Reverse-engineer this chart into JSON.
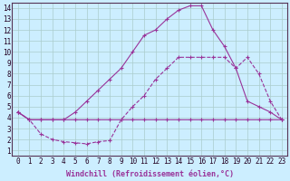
{
  "xlabel": "Windchill (Refroidissement éolien,°C)",
  "bg_color": "#cceeff",
  "grid_color": "#aacccc",
  "line_color": "#993399",
  "marker": "+",
  "xlim": [
    -0.5,
    23.5
  ],
  "ylim": [
    0.5,
    14.5
  ],
  "xticks": [
    0,
    1,
    2,
    3,
    4,
    5,
    6,
    7,
    8,
    9,
    10,
    11,
    12,
    13,
    14,
    15,
    16,
    17,
    18,
    19,
    20,
    21,
    22,
    23
  ],
  "yticks": [
    1,
    2,
    3,
    4,
    5,
    6,
    7,
    8,
    9,
    10,
    11,
    12,
    13,
    14
  ],
  "line1_x": [
    0,
    1,
    2,
    3,
    4,
    5,
    6,
    7,
    8,
    9,
    10,
    11,
    12,
    13,
    14,
    15,
    16,
    17,
    18,
    19,
    20,
    21,
    22,
    23
  ],
  "line1_y": [
    4.5,
    3.8,
    3.8,
    3.8,
    3.8,
    3.8,
    3.8,
    3.8,
    3.8,
    3.8,
    3.8,
    3.8,
    3.8,
    3.8,
    3.8,
    3.8,
    3.8,
    3.8,
    3.8,
    3.8,
    3.8,
    3.8,
    3.8,
    3.8
  ],
  "line2_x": [
    0,
    1,
    2,
    3,
    4,
    5,
    6,
    7,
    8,
    9,
    10,
    11,
    12,
    13,
    14,
    15,
    16,
    17,
    18,
    19,
    20,
    21,
    22,
    23
  ],
  "line2_y": [
    4.5,
    3.8,
    2.5,
    2.0,
    1.8,
    1.7,
    1.6,
    1.8,
    1.9,
    3.8,
    5.0,
    6.0,
    7.5,
    8.5,
    9.5,
    9.5,
    9.5,
    9.5,
    9.5,
    8.5,
    9.5,
    8.0,
    5.5,
    3.8
  ],
  "line3_x": [
    0,
    1,
    2,
    3,
    4,
    5,
    6,
    7,
    8,
    9,
    10,
    11,
    12,
    13,
    14,
    15,
    16,
    17,
    18,
    19,
    20,
    21,
    22,
    23
  ],
  "line3_y": [
    4.5,
    3.8,
    3.8,
    3.8,
    3.8,
    4.5,
    5.5,
    6.5,
    7.5,
    8.5,
    10.0,
    11.5,
    12.0,
    13.0,
    13.8,
    14.2,
    14.2,
    12.0,
    10.5,
    8.5,
    5.5,
    5.0,
    4.5,
    3.8
  ],
  "font_size_label": 6,
  "font_size_tick": 5.5,
  "line_width": 0.8,
  "marker_size": 3
}
